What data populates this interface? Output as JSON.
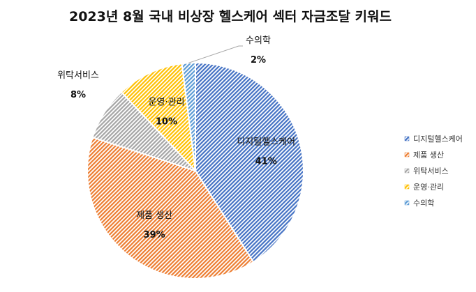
{
  "chart_data": {
    "type": "pie",
    "title": "2023년 8월 국내 비상장 헬스케어 섹터 자금조달 키워드",
    "categories": [
      "디지털헬스케어",
      "제품 생산",
      "위탁서비스",
      "운영·관리",
      "수의학"
    ],
    "values": [
      41,
      39,
      8,
      10,
      2
    ],
    "value_labels": [
      "41%",
      "39%",
      "8%",
      "10%",
      "2%"
    ],
    "colors": [
      "#4472C4",
      "#ED7D31",
      "#A5A5A5",
      "#FFC000",
      "#5B9BD5"
    ],
    "legend": {
      "placement": "right",
      "items": [
        "디지털헬스케어",
        "제품 생산",
        "위탁서비스",
        "운영·관리",
        "수의학"
      ]
    },
    "fill_pattern": "diagonal-hatch"
  }
}
